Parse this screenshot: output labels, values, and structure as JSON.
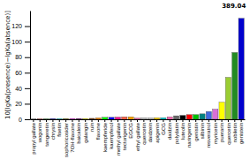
{
  "chart_data": {
    "type": "bar",
    "categories": [
      "propyl gallate",
      "wogonin",
      "tangeretin",
      "chrysin",
      "fisetin",
      "sophoricosider",
      "7OH-flavone",
      "baicalein",
      "galangin",
      "ruin",
      "flavone",
      "kaempferide",
      "kaempferol",
      "methyl gallate",
      "tectorigenin",
      "EGCG",
      "ethyl gallate",
      "quercetin",
      "daidzein",
      "apigenin",
      "GCG",
      "daidzin",
      "polydatin",
      "luteolin",
      "naringenin",
      "genistin",
      "silbinin",
      "resveratrol",
      "myricetin",
      "puerarin",
      "quercetin",
      "nobiletin",
      "genistein"
    ],
    "values": [
      0.4,
      0.4,
      0.5,
      0.8,
      0.8,
      0.9,
      0.9,
      1.0,
      1.0,
      1.2,
      1.8,
      2.5,
      2.5,
      2.8,
      3.2,
      3.2,
      1.5,
      2.0,
      1.8,
      2.0,
      2.0,
      3.2,
      4.5,
      5.0,
      6.0,
      6.0,
      7.0,
      10.0,
      13.0,
      22.0,
      54.0,
      86.0,
      130.0
    ],
    "colors": [
      "#808080",
      "#FF0000",
      "#008000",
      "#0000CD",
      "#00FFFF",
      "#808000",
      "#FF00FF",
      "#800080",
      "#FFFF00",
      "#8B4513",
      "#FF8C00",
      "#00FF00",
      "#0000FF",
      "#FF1493",
      "#FF6347",
      "#FFA500",
      "#FF69B4",
      "#C8C8C8",
      "#C8C8C8",
      "#FFD700",
      "#00CED1",
      "#FF69B4",
      "#696969",
      "#000000",
      "#FF0000",
      "#00C000",
      "#008080",
      "#4169E1",
      "#DA70D6",
      "#FFFF00",
      "#9ACD32",
      "#228B22",
      "#0000CD"
    ],
    "ylabel": "10[lgKa(presence)−lgKa(absence)]",
    "ylim": [
      0,
      140
    ],
    "yticks": [
      0,
      20,
      40,
      60,
      80,
      100,
      120
    ],
    "annotation": "389.04"
  }
}
